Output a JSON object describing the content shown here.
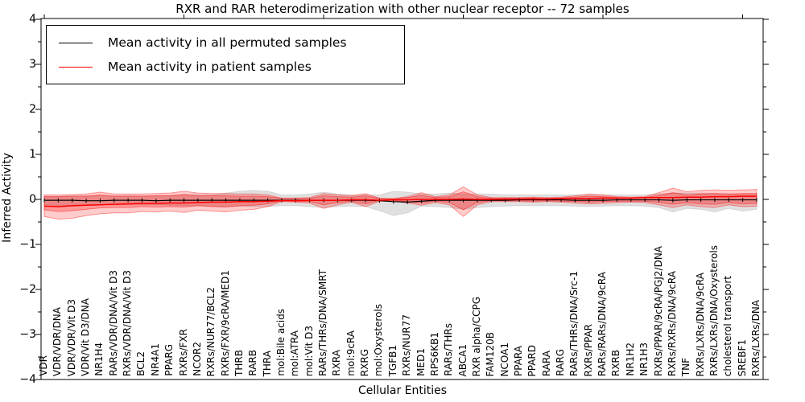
{
  "chart": {
    "title": "RXR and RAR heterodimerization with other nuclear receptor -- 72 samples",
    "xlabel": "Cellular Entities",
    "ylabel": "Inferred Activity",
    "legend": {
      "entries": [
        {
          "label": "Mean activity in all permuted samples",
          "color": "#000000"
        },
        {
          "label": "Mean activity in patient samples",
          "color": "#ff0000"
        }
      ],
      "position": "upper left"
    },
    "ytick_labels": [
      "4",
      "3",
      "2",
      "1",
      "0",
      "−1",
      "−2",
      "−3",
      "−4"
    ],
    "ytick_values": [
      4,
      3,
      2,
      1,
      0,
      -1,
      -2,
      -3,
      -4
    ]
  },
  "chart_data": {
    "type": "line",
    "title": "RXR and RAR heterodimerization with other nuclear receptor -- 72 samples",
    "xlabel": "Cellular Entities",
    "ylabel": "Inferred Activity",
    "ylim": [
      -4,
      4
    ],
    "ytick_step_major": 1,
    "ytick_step_minor": 0.5,
    "grid": false,
    "legend_position": "upper left",
    "xtick_major_indices": [
      0,
      10,
      20,
      30,
      40,
      50
    ],
    "categories": [
      "VDR",
      "VDR/VDR/DNA",
      "VDR/VDR/Vit D3",
      "VDR/Vit D3/DNA",
      "NR1H4",
      "RARs/VDR/DNA/Vit D3",
      "RXRs/VDR/DNA/Vit D3",
      "BCL2",
      "NR4A1",
      "PPARG",
      "RXRs/FXR",
      "NCOR2",
      "RXRs/NUR77/BCL2",
      "RXRs/FXR/9cRA/MED1",
      "THRB",
      "RARB",
      "THRA",
      "mol:Bile acids",
      "mol:ATRA",
      "mol:Vit D3",
      "RARs/THRs/DNA/SMRT",
      "RXRA",
      "mol:9cRA",
      "RXRG",
      "mol:Oxysterols",
      "TGFB1",
      "RXRs/NUR77",
      "MED1",
      "RPS6KB1",
      "RARs/THRs",
      "ABCA1",
      "RXR alpha/CCPG",
      "FAM120B",
      "NCOA1",
      "PPARA",
      "PPARD",
      "RARA",
      "RARG",
      "RARs/THRs/DNA/Src-1",
      "RXRs/PPAR",
      "RARs/RARs/DNA/9cRA",
      "RXRB",
      "NR1H2",
      "NR1H3",
      "RXRs/PPAR/9cRA/PGJ2/DNA",
      "RXRs/RXRs/DNA/9cRA",
      "TNF",
      "RXRs/LXRs/DNA/9cRA",
      "RXRs/LXRs/DNA/Oxysterols",
      "cholesterol transport",
      "SREBF1",
      "RXRs/LXRs/DNA"
    ],
    "series": [
      {
        "name": "Mean activity in all permuted samples",
        "kind": "line",
        "color": "#000000",
        "marker": "plus",
        "values": [
          -0.02,
          -0.02,
          -0.02,
          -0.03,
          -0.03,
          -0.02,
          -0.02,
          -0.02,
          -0.03,
          -0.02,
          -0.02,
          -0.02,
          -0.02,
          -0.02,
          -0.02,
          -0.02,
          -0.02,
          -0.02,
          -0.02,
          -0.02,
          -0.02,
          -0.02,
          -0.02,
          -0.02,
          -0.03,
          -0.05,
          -0.06,
          -0.04,
          -0.02,
          -0.02,
          -0.02,
          -0.02,
          -0.02,
          -0.02,
          -0.01,
          -0.01,
          -0.01,
          -0.01,
          -0.02,
          -0.02,
          -0.02,
          -0.01,
          -0.01,
          -0.01,
          -0.01,
          -0.02,
          -0.01,
          -0.01,
          -0.01,
          -0.01,
          -0.01,
          -0.01
        ]
      },
      {
        "name": "Mean activity in patient samples",
        "kind": "line",
        "color": "#ff0000",
        "marker": "none",
        "values": [
          -0.15,
          -0.16,
          -0.14,
          -0.13,
          -0.12,
          -0.11,
          -0.1,
          -0.09,
          -0.09,
          -0.08,
          -0.08,
          -0.07,
          -0.06,
          -0.06,
          -0.05,
          -0.05,
          -0.04,
          -0.03,
          -0.03,
          -0.02,
          -0.02,
          -0.02,
          -0.01,
          -0.01,
          -0.02,
          -0.01,
          -0.01,
          0.0,
          0.0,
          0.0,
          0.01,
          0.0,
          0.0,
          0.01,
          0.01,
          0.01,
          0.01,
          0.02,
          0.02,
          0.02,
          0.03,
          0.03,
          0.03,
          0.04,
          0.04,
          0.04,
          0.05,
          0.05,
          0.06,
          0.06,
          0.07,
          0.07
        ]
      },
      {
        "name": "Permuted samples activity range",
        "kind": "band",
        "fill": "rgba(0,0,0,0.12)",
        "edge": "rgba(0,0,0,0.10)",
        "upper": [
          0.07,
          0.07,
          0.08,
          0.08,
          0.08,
          0.08,
          0.09,
          0.08,
          0.08,
          0.09,
          0.1,
          0.1,
          0.1,
          0.14,
          0.18,
          0.2,
          0.18,
          0.1,
          0.1,
          0.12,
          0.16,
          0.12,
          0.1,
          0.1,
          0.1,
          0.18,
          0.16,
          0.12,
          0.12,
          0.14,
          0.12,
          0.12,
          0.12,
          0.1,
          0.1,
          0.1,
          0.1,
          0.1,
          0.1,
          0.1,
          0.1,
          0.1,
          0.1,
          0.1,
          0.12,
          0.14,
          0.14,
          0.14,
          0.13,
          0.12,
          0.12,
          0.12
        ],
        "lower": [
          -0.12,
          -0.14,
          -0.13,
          -0.12,
          -0.12,
          -0.12,
          -0.12,
          -0.12,
          -0.12,
          -0.13,
          -0.14,
          -0.14,
          -0.15,
          -0.16,
          -0.15,
          -0.16,
          -0.16,
          -0.14,
          -0.14,
          -0.16,
          -0.18,
          -0.16,
          -0.15,
          -0.16,
          -0.25,
          -0.36,
          -0.3,
          -0.15,
          -0.16,
          -0.18,
          -0.22,
          -0.18,
          -0.16,
          -0.15,
          -0.14,
          -0.14,
          -0.14,
          -0.14,
          -0.15,
          -0.16,
          -0.15,
          -0.14,
          -0.14,
          -0.15,
          -0.18,
          -0.28,
          -0.2,
          -0.22,
          -0.28,
          -0.2,
          -0.26,
          -0.22
        ]
      },
      {
        "name": "Patient samples activity range (outer)",
        "kind": "band",
        "fill": "rgba(255,0,0,0.20)",
        "edge": "rgba(255,0,0,0.38)",
        "upper": [
          0.1,
          0.1,
          0.11,
          0.12,
          0.16,
          0.12,
          0.12,
          0.12,
          0.13,
          0.14,
          0.18,
          0.14,
          0.13,
          0.13,
          0.12,
          0.12,
          0.1,
          0.03,
          0.03,
          0.04,
          0.13,
          0.1,
          0.08,
          0.13,
          0.03,
          0.02,
          0.06,
          0.15,
          0.06,
          0.1,
          0.28,
          0.1,
          0.04,
          0.04,
          0.04,
          0.05,
          0.04,
          0.05,
          0.08,
          0.12,
          0.1,
          0.06,
          0.05,
          0.06,
          0.15,
          0.25,
          0.17,
          0.2,
          0.21,
          0.2,
          0.21,
          0.22
        ],
        "lower": [
          -0.38,
          -0.44,
          -0.42,
          -0.36,
          -0.32,
          -0.3,
          -0.3,
          -0.27,
          -0.28,
          -0.26,
          -0.29,
          -0.24,
          -0.26,
          -0.28,
          -0.24,
          -0.22,
          -0.16,
          -0.05,
          -0.06,
          -0.08,
          -0.2,
          -0.12,
          -0.06,
          -0.16,
          -0.04,
          -0.03,
          -0.08,
          -0.13,
          -0.07,
          -0.12,
          -0.38,
          -0.12,
          -0.05,
          -0.05,
          -0.05,
          -0.06,
          -0.05,
          -0.06,
          -0.08,
          -0.1,
          -0.09,
          -0.07,
          -0.06,
          -0.07,
          -0.12,
          -0.18,
          -0.12,
          -0.16,
          -0.18,
          -0.12,
          -0.16,
          -0.15
        ]
      },
      {
        "name": "Patient samples activity range (inner)",
        "kind": "band",
        "fill": "rgba(255,0,0,0.25)",
        "edge": "rgba(255,0,0,0.42)",
        "upper": [
          0.06,
          0.06,
          0.07,
          0.07,
          0.1,
          0.07,
          0.07,
          0.07,
          0.08,
          0.08,
          0.11,
          0.08,
          0.08,
          0.08,
          0.07,
          0.07,
          0.06,
          0.02,
          0.02,
          0.02,
          0.08,
          0.06,
          0.05,
          0.08,
          0.02,
          0.01,
          0.04,
          0.09,
          0.04,
          0.06,
          0.17,
          0.06,
          0.02,
          0.02,
          0.02,
          0.03,
          0.02,
          0.03,
          0.05,
          0.07,
          0.06,
          0.04,
          0.03,
          0.04,
          0.09,
          0.15,
          0.1,
          0.12,
          0.13,
          0.12,
          0.13,
          0.13
        ],
        "lower": [
          -0.23,
          -0.27,
          -0.25,
          -0.22,
          -0.19,
          -0.18,
          -0.18,
          -0.16,
          -0.17,
          -0.16,
          -0.17,
          -0.14,
          -0.16,
          -0.17,
          -0.14,
          -0.13,
          -0.1,
          -0.03,
          -0.04,
          -0.05,
          -0.12,
          -0.07,
          -0.04,
          -0.1,
          -0.02,
          -0.02,
          -0.05,
          -0.08,
          -0.04,
          -0.07,
          -0.23,
          -0.07,
          -0.03,
          -0.03,
          -0.03,
          -0.04,
          -0.03,
          -0.04,
          -0.05,
          -0.06,
          -0.05,
          -0.04,
          -0.04,
          -0.04,
          -0.07,
          -0.11,
          -0.07,
          -0.1,
          -0.11,
          -0.07,
          -0.1,
          -0.09
        ]
      }
    ]
  }
}
